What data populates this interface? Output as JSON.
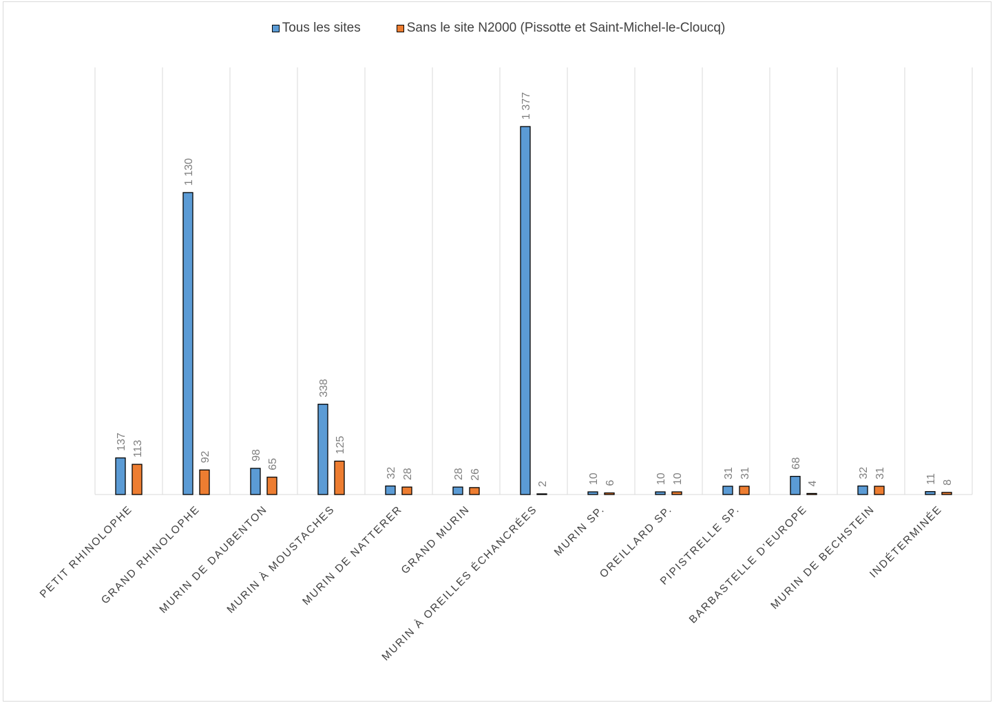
{
  "chart_data": {
    "type": "bar",
    "title": "",
    "xlabel": "",
    "ylabel": "",
    "ylim": [
      0,
      1377
    ],
    "grid": "vertical category separators",
    "legend": "top-center",
    "categories": [
      "PETIT RHINOLOPHE",
      "GRAND RHINOLOPHE",
      "MURIN DE DAUBENTON",
      "MURIN À MOUSTACHES",
      "MURIN DE NATTERER",
      "GRAND MURIN",
      "MURIN À OREILLES ÉCHANCRÉES",
      "MURIN SP.",
      "OREILLARD SP.",
      "PIPISTRELLE SP.",
      "BARBASTELLE D’EUROPE",
      "MURIN DE BECHSTEIN",
      "INDÉTERMINÉE"
    ],
    "series": [
      {
        "name": "Tous les sites",
        "color": "#5b9bd5",
        "values": [
          137,
          1130,
          98,
          338,
          32,
          28,
          1377,
          10,
          10,
          31,
          68,
          32,
          11
        ],
        "labels": [
          "137",
          "1 130",
          "98",
          "338",
          "32",
          "28",
          "1 377",
          "10",
          "10",
          "31",
          "68",
          "32",
          "11"
        ]
      },
      {
        "name": "Sans le site N2000 (Pissotte et Saint-Michel-le-Cloucq)",
        "color": "#ed7d31",
        "values": [
          113,
          92,
          65,
          125,
          28,
          26,
          2,
          6,
          10,
          31,
          4,
          31,
          8
        ],
        "labels": [
          "113",
          "92",
          "65",
          "125",
          "28",
          "26",
          "2",
          "6",
          "10",
          "31",
          "4",
          "31",
          "8"
        ]
      }
    ]
  }
}
